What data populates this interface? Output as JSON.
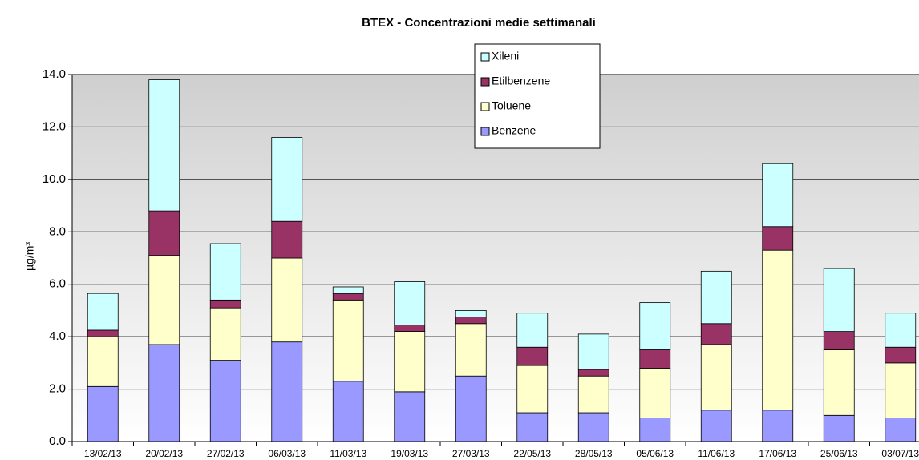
{
  "chart_data": {
    "type": "stacked_bar",
    "title": "BTEX - Concentrazioni medie settimanali",
    "y_label": "µg/m³",
    "categories": [
      "13/02/13",
      "20/02/13",
      "27/02/13",
      "06/03/13",
      "11/03/13",
      "19/03/13",
      "27/03/13",
      "22/05/13",
      "28/05/13",
      "05/06/13",
      "11/06/13",
      "17/06/13",
      "25/06/13",
      "03/07/13"
    ],
    "series": [
      {
        "name": "Benzene",
        "color": "#9999ff",
        "values": [
          2.1,
          3.7,
          3.1,
          3.8,
          2.3,
          1.9,
          2.5,
          1.1,
          1.1,
          0.9,
          1.2,
          1.2,
          1.0,
          0.9
        ]
      },
      {
        "name": "Toluene",
        "color": "#ffffcc",
        "values": [
          1.9,
          3.4,
          2.0,
          3.2,
          3.1,
          2.3,
          2.0,
          1.8,
          1.4,
          1.9,
          2.5,
          6.1,
          2.5,
          2.1
        ]
      },
      {
        "name": "Etilbenzene",
        "color": "#993366",
        "values": [
          0.25,
          1.7,
          0.3,
          1.4,
          0.25,
          0.25,
          0.25,
          0.7,
          0.25,
          0.7,
          0.8,
          0.9,
          0.7,
          0.6
        ]
      },
      {
        "name": "Xileni",
        "color": "#ccffff",
        "values": [
          1.4,
          5.0,
          2.15,
          3.2,
          0.25,
          1.65,
          0.25,
          1.3,
          1.35,
          1.8,
          2.0,
          2.4,
          2.4,
          1.3
        ]
      }
    ],
    "ylim": [
      0,
      14
    ],
    "yticks": [
      {
        "value": 0,
        "label": "0.0"
      },
      {
        "value": 2,
        "label": "2.0"
      },
      {
        "value": 4,
        "label": "4.0"
      },
      {
        "value": 6,
        "label": "6.0"
      },
      {
        "value": 8,
        "label": "8.0"
      },
      {
        "value": 10,
        "label": "10.0"
      },
      {
        "value": 12,
        "label": "12.0"
      },
      {
        "value": 14,
        "label": "14.0"
      }
    ],
    "grid": true
  }
}
